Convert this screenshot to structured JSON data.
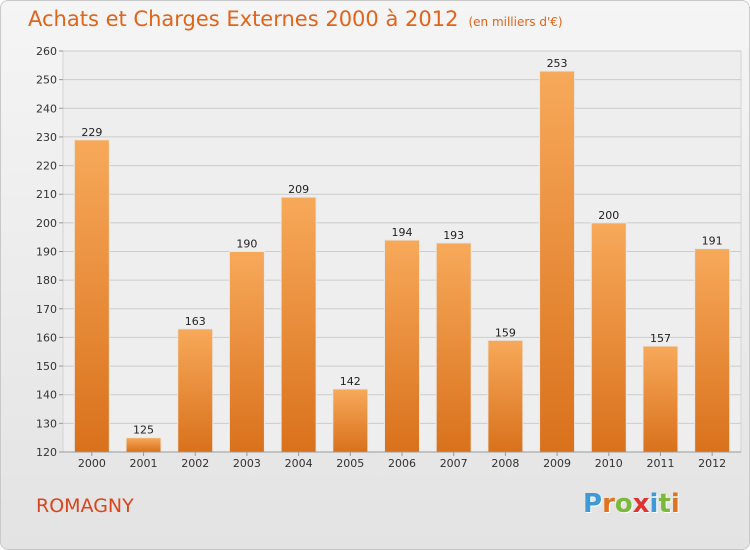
{
  "title": "Achats et Charges Externes 2000 à 2012",
  "unit_note": "(en milliers d'€)",
  "commune": "ROMAGNY",
  "logo": {
    "text": "Proxiti",
    "letters": [
      "P",
      "r",
      "o",
      "x",
      "i",
      "t",
      "i"
    ],
    "colors": [
      "#3d9ad6",
      "#e2731e",
      "#7bb93b",
      "#e0332f",
      "#3d9ad6",
      "#7bb93b",
      "#e2731e"
    ]
  },
  "colors": {
    "title": "#e0641a",
    "bar_top": "#f7a95a",
    "bar_bottom": "#d9711c",
    "grid": "#cccccc"
  },
  "chart_data": {
    "type": "bar",
    "title": "Achats et Charges Externes 2000 à 2012",
    "subtitle": "(en milliers d'€)",
    "categories": [
      "2000",
      "2001",
      "2002",
      "2003",
      "2004",
      "2005",
      "2006",
      "2007",
      "2008",
      "2009",
      "2010",
      "2011",
      "2012"
    ],
    "values": [
      229,
      125,
      163,
      190,
      209,
      142,
      194,
      193,
      159,
      253,
      200,
      157,
      191
    ],
    "yticks": [
      120,
      130,
      140,
      150,
      160,
      170,
      180,
      190,
      200,
      210,
      220,
      230,
      240,
      250,
      260
    ],
    "ylim": [
      120,
      260
    ],
    "grid": true,
    "data_labels": true
  }
}
